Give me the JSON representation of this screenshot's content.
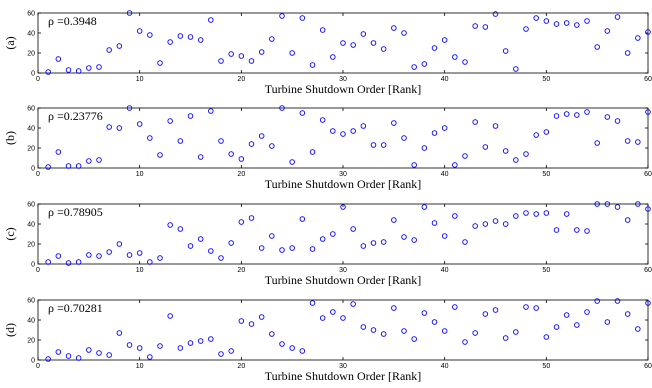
{
  "chart_data": [
    {
      "type": "scatter",
      "panel_label": "(a)",
      "annotation": "ρ =0.3948",
      "xlabel": "Turbine Shutdown Order [Rank]",
      "xlim": [
        0,
        60
      ],
      "ylim": [
        0,
        60
      ],
      "xticks": [
        0,
        10,
        20,
        30,
        40,
        50,
        60
      ],
      "yticks": [
        0,
        20,
        40,
        60
      ],
      "grid": false,
      "marker_color": "#0000ff",
      "x": [
        1,
        2,
        3,
        4,
        5,
        6,
        7,
        8,
        9,
        10,
        11,
        12,
        13,
        14,
        15,
        16,
        17,
        18,
        19,
        20,
        21,
        22,
        23,
        24,
        25,
        26,
        27,
        28,
        29,
        30,
        31,
        32,
        33,
        34,
        35,
        36,
        37,
        38,
        39,
        40,
        41,
        42,
        43,
        44,
        45,
        46,
        47,
        48,
        49,
        50,
        51,
        52,
        53,
        54,
        55,
        56,
        57,
        58,
        59,
        60
      ],
      "y": [
        1,
        14,
        3,
        2,
        5,
        6,
        23,
        27,
        60,
        42,
        38,
        10,
        31,
        37,
        36,
        33,
        53,
        12,
        19,
        17,
        12,
        21,
        34,
        57,
        20,
        55,
        8,
        43,
        16,
        30,
        28,
        39,
        30,
        24,
        45,
        40,
        6,
        9,
        25,
        33,
        16,
        11,
        47,
        46,
        59,
        22,
        4,
        44,
        55,
        52,
        49,
        50,
        48,
        52,
        26,
        42,
        56,
        20,
        35,
        41
      ]
    },
    {
      "type": "scatter",
      "panel_label": "(b)",
      "annotation": "ρ =0.23776",
      "xlabel": "Turbine Shutdown Order [Rank]",
      "xlim": [
        0,
        60
      ],
      "ylim": [
        0,
        60
      ],
      "xticks": [
        0,
        10,
        20,
        30,
        40,
        50,
        60
      ],
      "yticks": [
        0,
        20,
        40,
        60
      ],
      "grid": false,
      "marker_color": "#0000ff",
      "x": [
        1,
        2,
        3,
        4,
        5,
        6,
        7,
        8,
        9,
        10,
        11,
        12,
        13,
        14,
        15,
        16,
        17,
        18,
        19,
        20,
        21,
        22,
        23,
        24,
        25,
        26,
        27,
        28,
        29,
        30,
        31,
        32,
        33,
        34,
        35,
        36,
        37,
        38,
        39,
        40,
        41,
        42,
        43,
        44,
        45,
        46,
        47,
        48,
        49,
        50,
        51,
        52,
        53,
        54,
        55,
        56,
        57,
        58,
        59,
        60
      ],
      "y": [
        1,
        16,
        2,
        2,
        7,
        8,
        41,
        40,
        60,
        44,
        30,
        13,
        47,
        27,
        52,
        11,
        57,
        27,
        14,
        9,
        24,
        32,
        22,
        60,
        6,
        55,
        16,
        48,
        37,
        34,
        37,
        42,
        23,
        23,
        45,
        30,
        3,
        20,
        35,
        40,
        3,
        12,
        46,
        21,
        42,
        17,
        8,
        14,
        33,
        36,
        52,
        54,
        53,
        56,
        25,
        51,
        47,
        27,
        26,
        56
      ]
    },
    {
      "type": "scatter",
      "panel_label": "(c)",
      "annotation": "ρ =0.78905",
      "xlabel": "Turbine Shutdown Order [Rank]",
      "xlim": [
        0,
        60
      ],
      "ylim": [
        0,
        60
      ],
      "xticks": [
        0,
        10,
        20,
        30,
        40,
        50,
        60
      ],
      "yticks": [
        0,
        20,
        40,
        60
      ],
      "grid": false,
      "marker_color": "#0000ff",
      "x": [
        1,
        2,
        3,
        4,
        5,
        6,
        7,
        8,
        9,
        10,
        11,
        12,
        13,
        14,
        15,
        16,
        17,
        18,
        19,
        20,
        21,
        22,
        23,
        24,
        25,
        26,
        27,
        28,
        29,
        30,
        31,
        32,
        33,
        34,
        35,
        36,
        37,
        38,
        39,
        40,
        41,
        42,
        43,
        44,
        45,
        46,
        47,
        48,
        49,
        50,
        51,
        52,
        53,
        54,
        55,
        56,
        57,
        58,
        59,
        60
      ],
      "y": [
        2,
        8,
        1,
        2,
        9,
        8,
        12,
        20,
        9,
        11,
        2,
        6,
        39,
        35,
        18,
        25,
        13,
        6,
        21,
        42,
        46,
        16,
        28,
        14,
        16,
        45,
        15,
        25,
        30,
        57,
        35,
        18,
        21,
        22,
        44,
        27,
        24,
        57,
        41,
        28,
        48,
        22,
        38,
        40,
        43,
        40,
        48,
        51,
        50,
        51,
        34,
        50,
        34,
        33,
        60,
        60,
        57,
        44,
        60,
        55
      ]
    },
    {
      "type": "scatter",
      "panel_label": "(d)",
      "annotation": "ρ =0.70281",
      "xlabel": "Turbine Shutdown Order [Rank]",
      "xlim": [
        0,
        60
      ],
      "ylim": [
        0,
        60
      ],
      "xticks": [
        0,
        10,
        20,
        30,
        40,
        50,
        60
      ],
      "yticks": [
        0,
        20,
        40,
        60
      ],
      "grid": false,
      "marker_color": "#0000ff",
      "x": [
        1,
        2,
        3,
        4,
        5,
        6,
        7,
        8,
        9,
        10,
        11,
        12,
        13,
        14,
        15,
        16,
        17,
        18,
        19,
        20,
        21,
        22,
        23,
        24,
        25,
        26,
        27,
        28,
        29,
        30,
        31,
        32,
        33,
        34,
        35,
        36,
        37,
        38,
        39,
        40,
        41,
        42,
        43,
        44,
        45,
        46,
        47,
        48,
        49,
        50,
        51,
        52,
        53,
        54,
        55,
        56,
        57,
        58,
        59,
        60
      ],
      "y": [
        1,
        8,
        4,
        2,
        10,
        7,
        5,
        27,
        15,
        12,
        3,
        14,
        44,
        12,
        17,
        19,
        21,
        6,
        9,
        39,
        36,
        43,
        26,
        16,
        12,
        9,
        57,
        42,
        48,
        42,
        56,
        33,
        30,
        26,
        52,
        29,
        21,
        47,
        38,
        29,
        53,
        18,
        27,
        46,
        50,
        22,
        28,
        53,
        52,
        23,
        33,
        45,
        35,
        48,
        59,
        38,
        59,
        46,
        31,
        57
      ]
    }
  ]
}
